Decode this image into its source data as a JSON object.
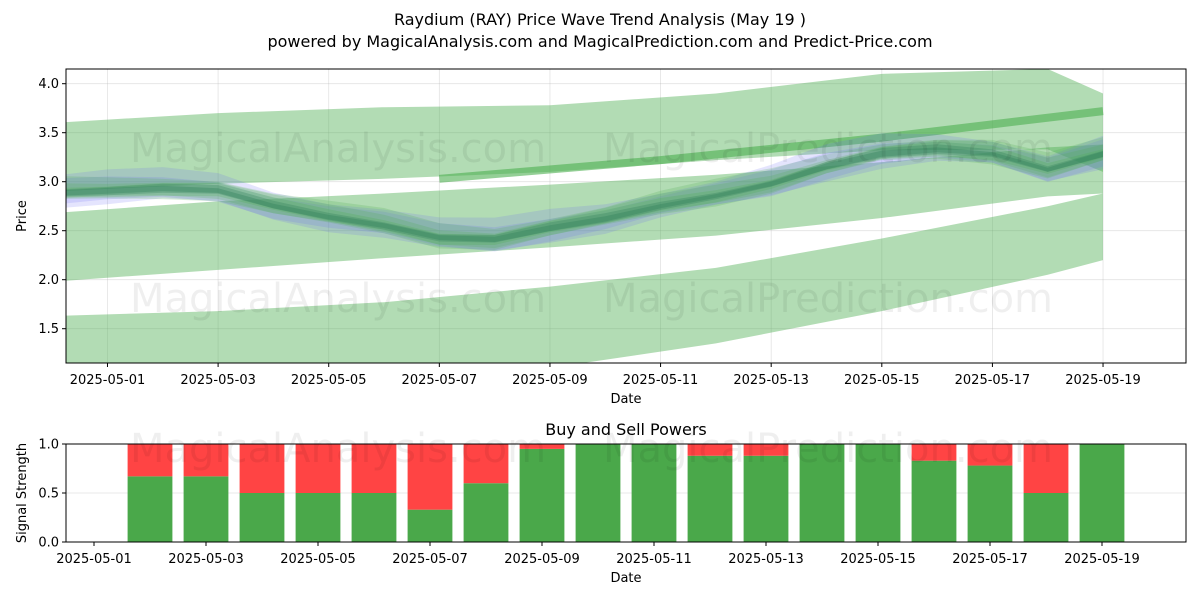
{
  "titles": {
    "main": "Raydium (RAY) Price Wave Trend Analysis (May 19 )",
    "sub": "powered by MagicalAnalysis.com and MagicalPrediction.com and Predict-Price.com"
  },
  "watermarks": [
    "MagicalAnalysis.com",
    "MagicalPrediction.com"
  ],
  "colors": {
    "band_green": "#4caf50",
    "band_blue": "#6a6af5",
    "buy": "#4aa84a",
    "sell": "#ff4444",
    "axes": "#000000",
    "grid": "#b0b0b0"
  },
  "chart_data": [
    {
      "type": "area",
      "title": "",
      "xlabel": "Date",
      "ylabel": "Price",
      "ylim": [
        1.15,
        4.15
      ],
      "xlim": [
        "2025-04-30T06:00",
        "2025-05-20T12:00"
      ],
      "grid": true,
      "x_ticks": [
        "2025-05-01",
        "2025-05-03",
        "2025-05-05",
        "2025-05-07",
        "2025-05-09",
        "2025-05-11",
        "2025-05-13",
        "2025-05-15",
        "2025-05-17",
        "2025-05-19"
      ],
      "y_ticks": [
        1.5,
        2.0,
        2.5,
        3.0,
        3.5,
        4.0
      ],
      "series": [
        {
          "kind": "outer_channel",
          "x": [
            "2025-04-30",
            "2025-05-03",
            "2025-05-06",
            "2025-05-09",
            "2025-05-12",
            "2025-05-15",
            "2025-05-18",
            "2025-05-19"
          ],
          "upper": [
            3.6,
            3.7,
            3.76,
            3.78,
            3.9,
            4.1,
            4.15,
            3.9
          ],
          "lower": [
            2.9,
            2.98,
            3.03,
            3.1,
            3.22,
            3.32,
            3.33,
            3.1
          ]
        },
        {
          "kind": "middle_channel",
          "x": [
            "2025-04-30",
            "2025-05-03",
            "2025-05-06",
            "2025-05-09",
            "2025-05-12",
            "2025-05-15",
            "2025-05-18",
            "2025-05-19"
          ],
          "upper": [
            2.68,
            2.8,
            2.88,
            2.97,
            3.07,
            3.2,
            3.35,
            3.38
          ],
          "lower": [
            1.98,
            2.1,
            2.22,
            2.33,
            2.45,
            2.63,
            2.85,
            2.88
          ]
        },
        {
          "kind": "lower_channel",
          "x": [
            "2025-04-30",
            "2025-05-03",
            "2025-05-06",
            "2025-05-09",
            "2025-05-12",
            "2025-05-15",
            "2025-05-18",
            "2025-05-19"
          ],
          "upper": [
            1.63,
            1.68,
            1.77,
            1.93,
            2.12,
            2.42,
            2.75,
            2.88
          ],
          "lower": [
            1.0,
            1.0,
            1.0,
            1.1,
            1.35,
            1.68,
            2.05,
            2.2
          ]
        },
        {
          "kind": "forecast_line",
          "x": [
            "2025-05-07",
            "2025-05-11",
            "2025-05-15",
            "2025-05-19"
          ],
          "values": [
            3.03,
            3.22,
            3.45,
            3.72
          ]
        },
        {
          "kind": "price_wave",
          "x": [
            "2025-04-30",
            "2025-05-01",
            "2025-05-02",
            "2025-05-03",
            "2025-05-04",
            "2025-05-05",
            "2025-05-06",
            "2025-05-07",
            "2025-05-08",
            "2025-05-09",
            "2025-05-10",
            "2025-05-11",
            "2025-05-12",
            "2025-05-13",
            "2025-05-14",
            "2025-05-15",
            "2025-05-16",
            "2025-05-17",
            "2025-05-18",
            "2025-05-19"
          ],
          "values": [
            2.88,
            2.9,
            2.92,
            2.9,
            2.75,
            2.64,
            2.55,
            2.42,
            2.4,
            2.52,
            2.62,
            2.75,
            2.85,
            2.97,
            3.15,
            3.28,
            3.32,
            3.28,
            3.12,
            3.28
          ]
        }
      ]
    },
    {
      "type": "bar",
      "title": "Buy and Sell Powers",
      "xlabel": "Date",
      "ylabel": "Signal Strength",
      "ylim": [
        0.0,
        1.0
      ],
      "xlim": [
        "2025-04-30T12:00",
        "2025-05-20T12:00"
      ],
      "x_ticks": [
        "2025-05-01",
        "2025-05-03",
        "2025-05-05",
        "2025-05-07",
        "2025-05-09",
        "2025-05-11",
        "2025-05-13",
        "2025-05-15",
        "2025-05-17",
        "2025-05-19"
      ],
      "y_ticks": [
        0.0,
        0.5,
        1.0
      ],
      "categories": [
        "2025-05-02",
        "2025-05-03",
        "2025-05-04",
        "2025-05-05",
        "2025-05-06",
        "2025-05-07",
        "2025-05-08",
        "2025-05-09",
        "2025-05-10",
        "2025-05-11",
        "2025-05-12",
        "2025-05-13",
        "2025-05-14",
        "2025-05-15",
        "2025-05-16",
        "2025-05-17",
        "2025-05-18",
        "2025-05-19"
      ],
      "series": [
        {
          "values": [
            0.67,
            0.67,
            0.5,
            0.5,
            0.5,
            0.33,
            0.6,
            0.95,
            1.0,
            1.0,
            0.88,
            0.88,
            1.0,
            1.0,
            0.83,
            0.78,
            0.5,
            1.0
          ]
        },
        {
          "values": [
            0.33,
            0.33,
            0.5,
            0.5,
            0.5,
            0.67,
            0.4,
            0.05,
            0.0,
            0.0,
            0.12,
            0.12,
            0.0,
            0.0,
            0.17,
            0.22,
            0.5,
            0.0
          ]
        }
      ]
    }
  ]
}
